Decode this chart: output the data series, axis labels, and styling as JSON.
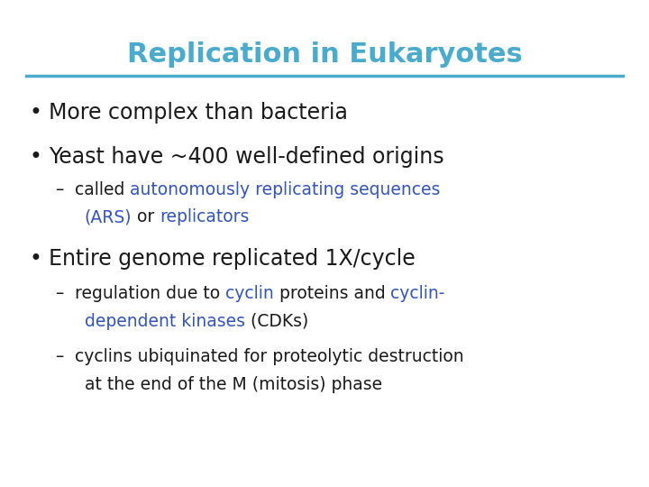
{
  "title": "Replication in Eukaryotes",
  "title_color": "#4AABCC",
  "title_fontsize": 22,
  "line_color": "#4AABCC",
  "background_color": "#FFFFFF",
  "blue_color": "#3355BB",
  "black_color": "#1A1A1A",
  "bullet_fontsize": 17,
  "sub_fontsize": 13.5,
  "fig_width": 7.2,
  "fig_height": 5.4,
  "fig_dpi": 100
}
